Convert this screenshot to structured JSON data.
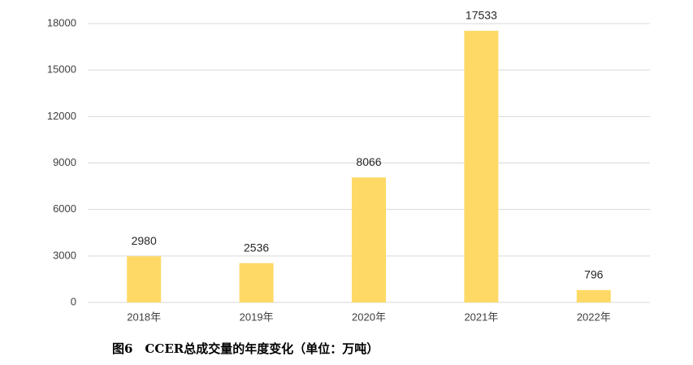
{
  "chart_data": {
    "type": "bar",
    "title": "图6　CCER总成交量的年度变化（单位：万吨）",
    "categories": [
      "2018年",
      "2019年",
      "2020年",
      "2021年",
      "2022年"
    ],
    "values": [
      2980,
      2536,
      8066,
      17533,
      796
    ],
    "color": "#ffd966",
    "ylim": [
      0,
      18000
    ],
    "yticks": [
      0,
      3000,
      6000,
      9000,
      12000,
      15000,
      18000
    ],
    "grid": true
  }
}
